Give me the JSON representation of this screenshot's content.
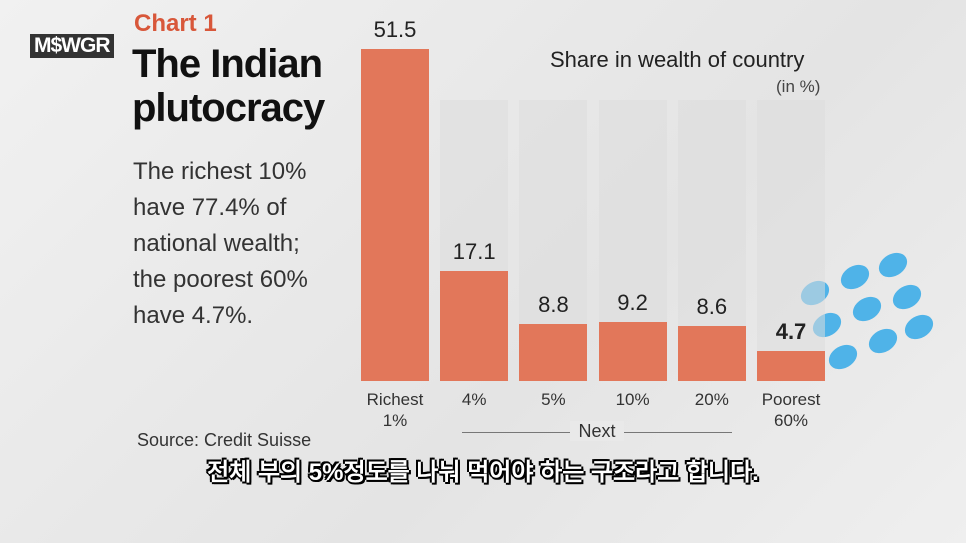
{
  "logo": "M$WGR",
  "chart_data": {
    "type": "bar",
    "label": "Chart 1",
    "title": "The Indian plutocracy",
    "subtitle": "The richest 10% have 77.4% of national wealth; the poorest 60% have 4.7%.",
    "axis_title": "Share in wealth of country",
    "unit": "(in %)",
    "categories": [
      "Richest 1%",
      "4%",
      "5%",
      "10%",
      "20%",
      "Poorest 60%"
    ],
    "group_label": "Next",
    "values": [
      51.5,
      17.1,
      8.8,
      9.2,
      8.6,
      4.7
    ],
    "color": "#e2775a",
    "source": "Source: Credit Suisse"
  },
  "caption": "전체 부의 5%정도를 나눠 먹어야 하는 구조라고 합니다."
}
